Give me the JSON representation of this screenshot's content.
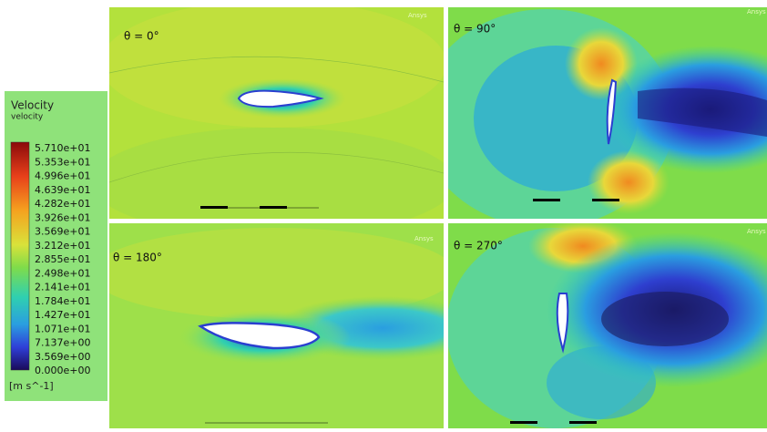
{
  "legend": {
    "title": "Velocity",
    "subtitle": "velocity",
    "ticks": [
      "5.710e+01",
      "5.353e+01",
      "4.996e+01",
      "4.639e+01",
      "4.282e+01",
      "3.926e+01",
      "3.569e+01",
      "3.212e+01",
      "2.855e+01",
      "2.498e+01",
      "2.141e+01",
      "1.784e+01",
      "1.427e+01",
      "1.071e+01",
      "7.137e+00",
      "3.569e+00",
      "0.000e+00"
    ],
    "unit": "[m s^-1]"
  },
  "watermark": "Ansys",
  "panels": [
    {
      "label": "θ = 0°"
    },
    {
      "label": "θ = 90°"
    },
    {
      "label": "θ = 180°"
    },
    {
      "label": "θ = 270°"
    }
  ]
}
